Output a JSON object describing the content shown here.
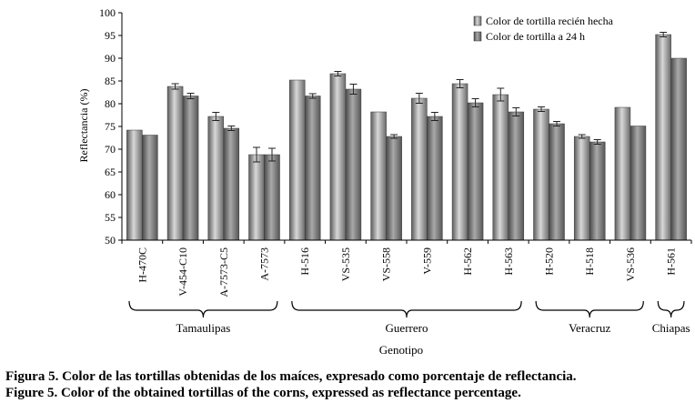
{
  "chart_data": {
    "type": "bar",
    "title": "",
    "ylabel": "Reflectancia (%)",
    "xlabel": "Genotipo",
    "ylim": [
      50,
      100
    ],
    "yticks": [
      50,
      55,
      60,
      65,
      70,
      75,
      80,
      85,
      90,
      95,
      100
    ],
    "categories": [
      "H-470C",
      "V-454-C10",
      "A-7573-C5",
      "A-7573",
      "H-516",
      "VS-535",
      "VS-558",
      "V-559",
      "H-562",
      "H-563",
      "H-520",
      "H-518",
      "VS-536",
      "H-561"
    ],
    "series": [
      {
        "name": "Color de tortilla recién hecha",
        "values": [
          74.2,
          83.8,
          77.2,
          68.8,
          85.2,
          86.6,
          78.2,
          81.2,
          84.4,
          82.0,
          78.8,
          72.8,
          79.2,
          95.2
        ],
        "errors": [
          0,
          0.6,
          0.9,
          1.6,
          0,
          0.5,
          0,
          1.1,
          0.9,
          1.4,
          0.5,
          0.4,
          0,
          0.5
        ]
      },
      {
        "name": "Color de tortilla a 24 h",
        "values": [
          73.1,
          81.7,
          74.6,
          68.8,
          81.7,
          83.2,
          72.8,
          77.2,
          80.2,
          78.2,
          75.6,
          71.6,
          75.1,
          90.0
        ],
        "errors": [
          0,
          0.6,
          0.5,
          1.4,
          0.5,
          1.1,
          0.4,
          0.9,
          0.9,
          0.9,
          0.5,
          0.5,
          0,
          0
        ]
      }
    ],
    "groups": [
      {
        "name": "Tamaulipas",
        "from": 0,
        "to": 3
      },
      {
        "name": "Guerrero",
        "from": 4,
        "to": 9
      },
      {
        "name": "Veracruz",
        "from": 10,
        "to": 12
      },
      {
        "name": "Chiapas",
        "from": 13,
        "to": 13
      }
    ],
    "legend_position": "top-right",
    "grid": false,
    "colors": {
      "series1": "#8a8a8a",
      "series2": "#6e6e6e",
      "axis": "#000000"
    }
  },
  "captions": {
    "spanish": "Figura 5. Color de las tortillas obtenidas de los maíces, expresado como porcentaje de reflectancia.",
    "english": "Figure 5. Color of the obtained tortillas of the corns, expressed as reflectance percentage."
  }
}
